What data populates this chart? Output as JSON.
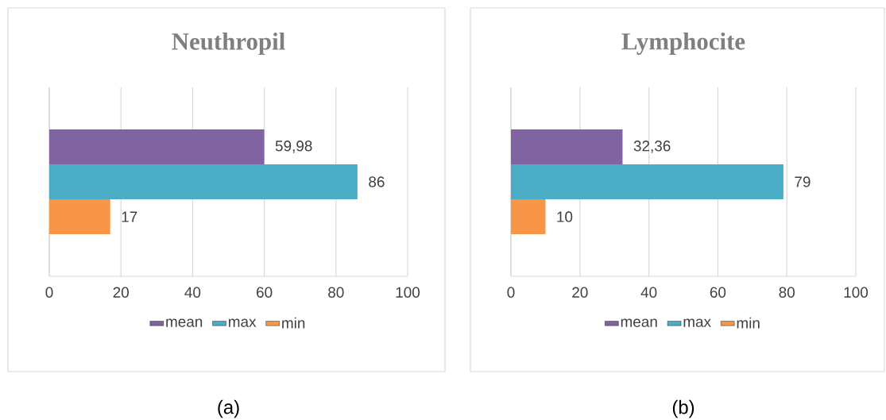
{
  "chart_data": [
    {
      "type": "bar",
      "orientation": "horizontal",
      "title": "Neuthropil",
      "categories": [
        null
      ],
      "xlim": [
        0,
        100
      ],
      "xticks": [
        0,
        20,
        40,
        60,
        80,
        100
      ],
      "grid": "x",
      "legend": "bottom",
      "annotations": [
        "(a)"
      ],
      "series": [
        {
          "name": "mean",
          "color": "#8064a2",
          "values": [
            59.98
          ],
          "value_labels": [
            "59,98"
          ]
        },
        {
          "name": "max",
          "color": "#4bacc6",
          "values": [
            86
          ],
          "value_labels": [
            "86"
          ]
        },
        {
          "name": "min",
          "color": "#f79646",
          "values": [
            17
          ],
          "value_labels": [
            "17"
          ]
        }
      ]
    },
    {
      "type": "bar",
      "orientation": "horizontal",
      "title": "Lymphocite",
      "categories": [
        null
      ],
      "xlim": [
        0,
        100
      ],
      "xticks": [
        0,
        20,
        40,
        60,
        80,
        100
      ],
      "grid": "x",
      "legend": "bottom",
      "annotations": [
        "(b)"
      ],
      "series": [
        {
          "name": "mean",
          "color": "#8064a2",
          "values": [
            32.36
          ],
          "value_labels": [
            "32,36"
          ]
        },
        {
          "name": "max",
          "color": "#4bacc6",
          "values": [
            79
          ],
          "value_labels": [
            "79"
          ]
        },
        {
          "name": "min",
          "color": "#f79646",
          "values": [
            10
          ],
          "value_labels": [
            "10"
          ]
        }
      ]
    }
  ]
}
